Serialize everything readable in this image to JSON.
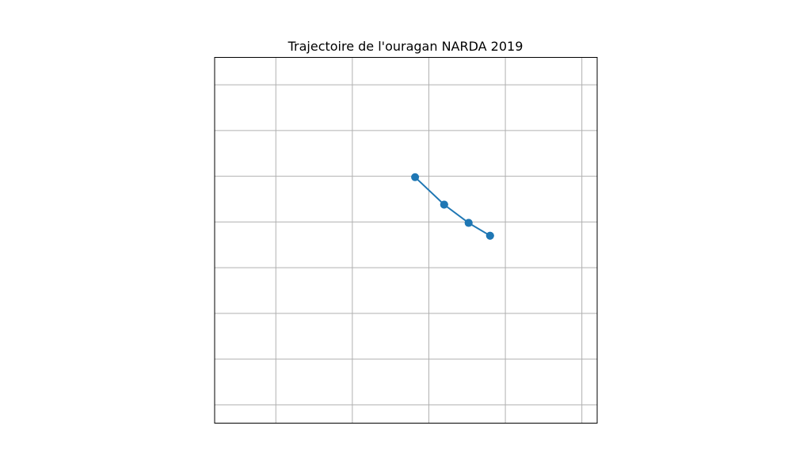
{
  "chart_data": {
    "type": "line",
    "title": "Trajectoire de l'ouragan NARDA 2019",
    "xlabel": "",
    "ylabel": "",
    "xlim": [
      -106.9,
      -104.4
    ],
    "ylim": [
      18.3,
      22.3
    ],
    "grid": true,
    "grid_x": [
      -106.5,
      -106.0,
      -105.5,
      -105.0,
      -104.5
    ],
    "grid_y": [
      22.0,
      21.5,
      21.0,
      20.5,
      20.0,
      19.5,
      19.0,
      18.5
    ],
    "series": [
      {
        "name": "",
        "color": "#1f77b4",
        "marker": "circle",
        "points": [
          {
            "x": -105.1,
            "y": 20.35
          },
          {
            "x": -105.24,
            "y": 20.49
          },
          {
            "x": -105.4,
            "y": 20.69
          },
          {
            "x": -105.59,
            "y": 20.99
          },
          {
            "x": -105.4,
            "y": 20.69
          },
          {
            "x": -105.24,
            "y": 20.49
          },
          {
            "x": -105.1,
            "y": 20.35
          }
        ]
      }
    ],
    "colors": {
      "frame": "#000000",
      "grid": "#b0b0b0"
    }
  }
}
